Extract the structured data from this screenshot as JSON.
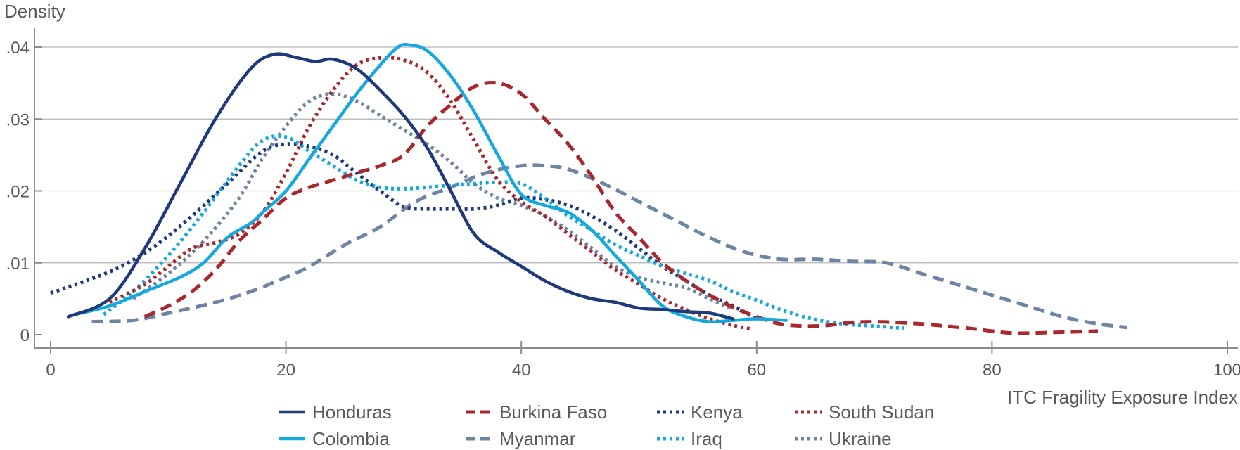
{
  "chart_data": {
    "type": "line",
    "ylabel": "Density",
    "xlabel": "ITC Fragility Exposure Index",
    "xlim": [
      0,
      100
    ],
    "ylim": [
      0,
      0.04
    ],
    "xticks": [
      0,
      20,
      40,
      60,
      80,
      100
    ],
    "xtick_labels": [
      "0",
      "20",
      "40",
      "60",
      "80",
      "100"
    ],
    "yticks": [
      0,
      0.01,
      0.02,
      0.03,
      0.04
    ],
    "ytick_labels": [
      "0",
      ".01",
      ".02",
      ".03",
      ".04"
    ],
    "grid": "horizontal",
    "legend_position": "bottom",
    "series": [
      {
        "name": "Honduras",
        "color": "#1f3a7a",
        "style": "solid",
        "x": [
          1.5,
          5,
          8,
          11,
          14,
          17,
          19,
          21,
          22.5,
          24,
          26,
          28,
          30,
          32,
          34,
          36,
          38,
          40,
          42,
          44,
          46,
          48,
          50,
          52,
          54,
          56,
          58
        ],
        "y": [
          0.0025,
          0.005,
          0.012,
          0.021,
          0.03,
          0.037,
          0.039,
          0.0385,
          0.038,
          0.0383,
          0.037,
          0.034,
          0.0305,
          0.026,
          0.02,
          0.014,
          0.0115,
          0.0095,
          0.0075,
          0.006,
          0.005,
          0.0045,
          0.0037,
          0.0035,
          0.0032,
          0.003,
          0.0022
        ]
      },
      {
        "name": "Colombia",
        "color": "#14a8e0",
        "style": "solid",
        "x": [
          2,
          5,
          8,
          11,
          13,
          15,
          17,
          18,
          20,
          22,
          24,
          26,
          28,
          29.5,
          30.5,
          32,
          34,
          36,
          38,
          40,
          42,
          44,
          46,
          48,
          50,
          52,
          54,
          56,
          58,
          60,
          62.5
        ],
        "y": [
          0.0028,
          0.004,
          0.006,
          0.008,
          0.01,
          0.0135,
          0.0155,
          0.017,
          0.02,
          0.0245,
          0.029,
          0.0335,
          0.0375,
          0.04,
          0.0403,
          0.0395,
          0.036,
          0.031,
          0.025,
          0.0195,
          0.018,
          0.017,
          0.0145,
          0.011,
          0.0075,
          0.004,
          0.0025,
          0.0018,
          0.002,
          0.0022,
          0.002
        ]
      },
      {
        "name": "Burkina Faso",
        "color": "#a8282d",
        "style": "dashed",
        "x": [
          8,
          10,
          12,
          14,
          16,
          18,
          20,
          22,
          24,
          26,
          28,
          30,
          32,
          34,
          36,
          38,
          40,
          42,
          44,
          46,
          48,
          50,
          52,
          54,
          56,
          58,
          60,
          62,
          64,
          66,
          68,
          70,
          72,
          74,
          76,
          78,
          80,
          82,
          85,
          89
        ],
        "y": [
          0.0025,
          0.004,
          0.006,
          0.009,
          0.013,
          0.016,
          0.019,
          0.0205,
          0.0215,
          0.0225,
          0.0235,
          0.025,
          0.029,
          0.032,
          0.0345,
          0.035,
          0.0335,
          0.03,
          0.0265,
          0.022,
          0.017,
          0.0135,
          0.01,
          0.0075,
          0.0055,
          0.0038,
          0.0025,
          0.0015,
          0.0012,
          0.0013,
          0.0017,
          0.0018,
          0.0017,
          0.0015,
          0.0012,
          0.0009,
          0.0005,
          0.0002,
          0.0003,
          0.0005
        ]
      },
      {
        "name": "Myanmar",
        "color": "#6e84a3",
        "style": "dashed",
        "x": [
          3.5,
          7,
          10,
          14,
          17,
          20,
          22,
          25,
          28,
          31,
          34,
          37,
          40,
          42,
          44,
          47,
          50,
          53,
          56,
          59,
          62,
          65,
          68,
          71,
          74,
          77,
          80,
          83,
          86,
          89,
          91.5
        ],
        "y": [
          0.0018,
          0.002,
          0.003,
          0.0045,
          0.006,
          0.008,
          0.0095,
          0.0125,
          0.015,
          0.0185,
          0.0205,
          0.0225,
          0.0235,
          0.0235,
          0.023,
          0.021,
          0.0185,
          0.016,
          0.0135,
          0.0115,
          0.0105,
          0.0105,
          0.0102,
          0.01,
          0.0085,
          0.007,
          0.0055,
          0.004,
          0.0025,
          0.0015,
          0.001
        ]
      },
      {
        "name": "Kenya",
        "color": "#1f3a7a",
        "style": "dotted",
        "x": [
          0,
          3,
          6,
          9,
          12,
          15,
          18,
          20,
          22,
          24,
          26,
          28,
          30,
          32,
          34,
          36,
          38,
          40,
          42,
          44,
          46,
          48,
          50,
          52,
          54,
          56,
          58,
          60
        ],
        "y": [
          0.0058,
          0.0075,
          0.0095,
          0.0125,
          0.0165,
          0.021,
          0.0255,
          0.0265,
          0.0262,
          0.025,
          0.0225,
          0.02,
          0.0178,
          0.0175,
          0.0175,
          0.0175,
          0.018,
          0.019,
          0.0188,
          0.018,
          0.0165,
          0.0145,
          0.012,
          0.0095,
          0.0075,
          0.0055,
          0.004,
          0.0022
        ]
      },
      {
        "name": "Iraq",
        "color": "#14a8e0",
        "style": "dotted",
        "x": [
          4.5,
          7,
          10,
          13,
          16,
          18,
          20,
          22,
          24,
          26,
          28,
          30,
          32,
          34,
          36,
          38,
          40,
          42,
          44,
          46,
          48,
          50,
          52,
          54,
          56,
          58,
          60,
          62,
          64,
          66,
          68,
          70,
          72.5
        ],
        "y": [
          0.0028,
          0.006,
          0.011,
          0.017,
          0.0235,
          0.027,
          0.0275,
          0.0255,
          0.0235,
          0.0215,
          0.0205,
          0.0203,
          0.0205,
          0.0208,
          0.021,
          0.0212,
          0.021,
          0.019,
          0.0165,
          0.0145,
          0.0125,
          0.011,
          0.0095,
          0.0085,
          0.0075,
          0.006,
          0.0048,
          0.0035,
          0.0025,
          0.0018,
          0.0014,
          0.0012,
          0.0009
        ]
      },
      {
        "name": "South Sudan",
        "color": "#a8282d",
        "style": "dotted",
        "x": [
          5,
          8,
          10,
          12,
          14,
          16,
          18,
          20,
          22,
          24,
          26,
          28,
          30,
          32,
          34,
          36,
          38,
          40,
          42,
          44,
          46,
          48,
          50,
          52,
          54,
          56,
          58,
          59.5
        ],
        "y": [
          0.0045,
          0.007,
          0.0095,
          0.012,
          0.0128,
          0.014,
          0.017,
          0.0225,
          0.029,
          0.034,
          0.0375,
          0.0385,
          0.0382,
          0.0365,
          0.0325,
          0.027,
          0.0215,
          0.0185,
          0.0165,
          0.014,
          0.0115,
          0.009,
          0.007,
          0.005,
          0.0035,
          0.0022,
          0.0013,
          0.0008
        ]
      },
      {
        "name": "Ukraine",
        "color": "#6e84a3",
        "style": "dotted",
        "x": [
          7,
          10,
          13,
          16,
          18,
          20,
          22,
          24,
          26,
          28,
          30,
          32,
          34,
          36,
          38,
          40,
          42,
          44,
          46,
          48,
          50,
          52,
          54,
          56,
          58
        ],
        "y": [
          0.005,
          0.0085,
          0.013,
          0.019,
          0.0245,
          0.029,
          0.0325,
          0.0335,
          0.0325,
          0.0305,
          0.0285,
          0.0265,
          0.024,
          0.021,
          0.019,
          0.018,
          0.0165,
          0.0145,
          0.012,
          0.0095,
          0.008,
          0.0072,
          0.0065,
          0.005,
          0.0035
        ]
      }
    ]
  }
}
